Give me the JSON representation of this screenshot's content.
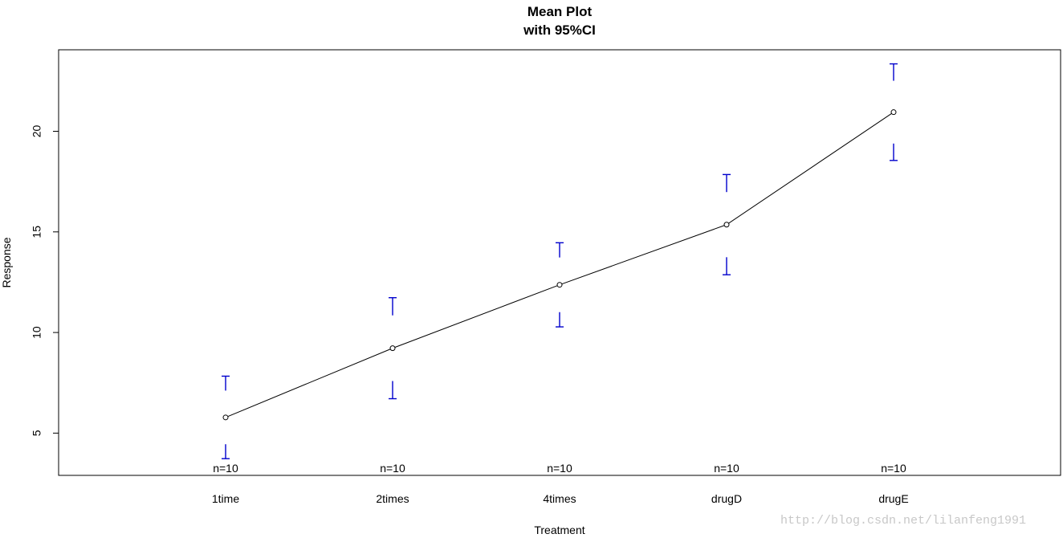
{
  "chart_data": {
    "type": "line",
    "title": "Mean Plot",
    "subtitle": "with 95%CI",
    "xlabel": "Treatment",
    "ylabel": "Response",
    "categories": [
      "1time",
      "2times",
      "4times",
      "drugD",
      "drugE"
    ],
    "means": [
      5.78,
      9.22,
      12.37,
      15.36,
      20.95
    ],
    "ci_lower": [
      3.73,
      6.71,
      10.28,
      12.87,
      18.55
    ],
    "ci_upper": [
      7.83,
      11.73,
      14.46,
      17.85,
      23.35
    ],
    "n_labels": [
      "n=10",
      "n=10",
      "n=10",
      "n=10",
      "n=10"
    ],
    "yticks": [
      5,
      10,
      15,
      20
    ],
    "ylim": [
      2.9,
      24.05
    ],
    "grid": false,
    "colors": {
      "line": "#000000",
      "ci": "#0000cc",
      "point": "#000000"
    }
  },
  "watermark": "http://blog.csdn.net/lilanfeng1991"
}
